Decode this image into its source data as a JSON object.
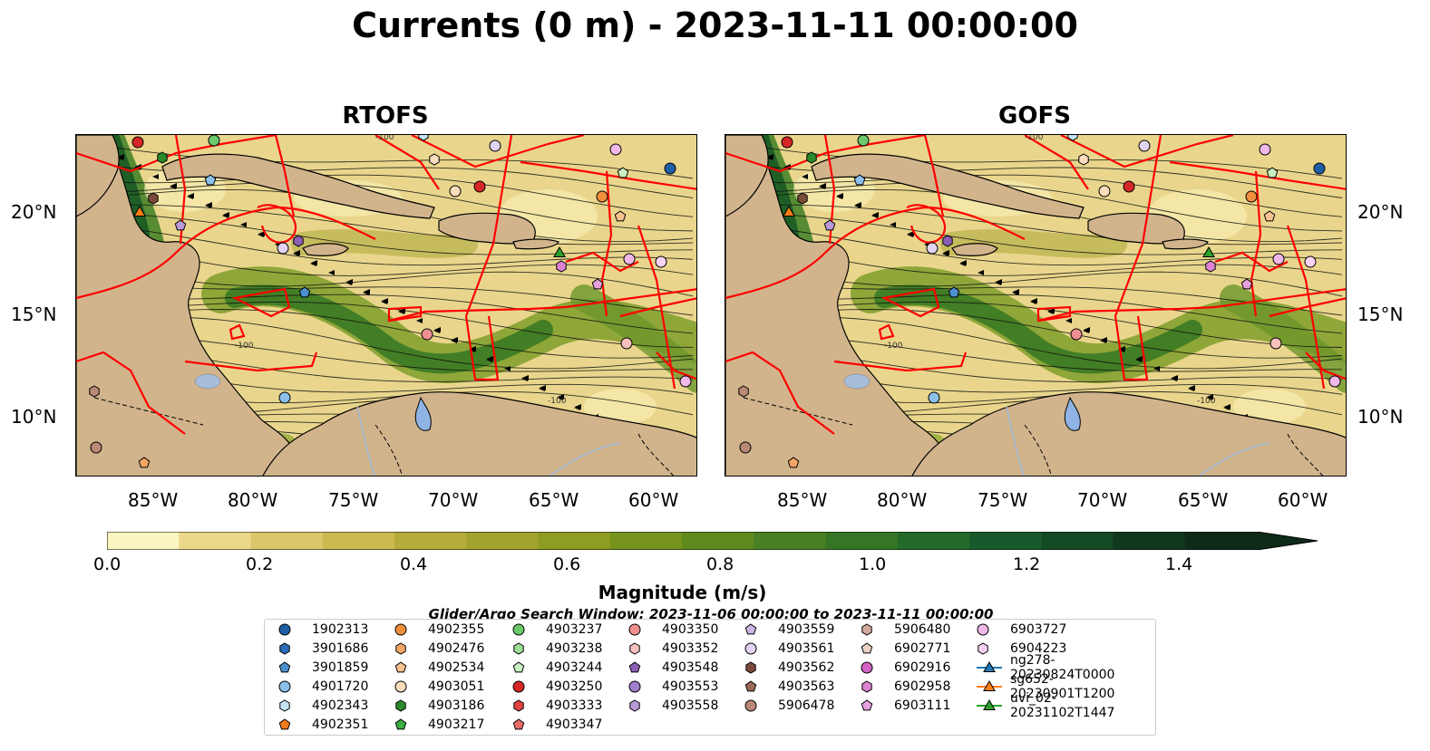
{
  "figure": {
    "title": "Currents (0 m) - 2023-11-11 00:00:00",
    "panels": [
      {
        "name": "RTOFS",
        "tile": "rtofs"
      },
      {
        "name": "GOFS",
        "tile": "gofs"
      }
    ],
    "lat_ticks": [
      "20°N",
      "15°N",
      "10°N"
    ],
    "lon_ticks": [
      "85°W",
      "80°W",
      "75°W",
      "70°W",
      "65°W",
      "60°W"
    ],
    "contour_labels": [
      "-100",
      "-100",
      "-100"
    ]
  },
  "colorbar": {
    "label": "Magnitude (m/s)",
    "ticks": [
      "0.0",
      "0.2",
      "0.4",
      "0.6",
      "0.8",
      "1.0",
      "1.2",
      "1.4"
    ],
    "colors": [
      "#fbf5c0",
      "#ecd88a",
      "#dcc66a",
      "#ccba50",
      "#b5ac3c",
      "#a2a22e",
      "#8f9c22",
      "#76941d",
      "#5f8a1e",
      "#4a8024",
      "#367525",
      "#246a2a",
      "#185a2b",
      "#134a24",
      "#10381d",
      "#0e2a18"
    ]
  },
  "search_window": "Glider/Argo Search Window: 2023-11-06 00:00:00 to 2023-11-11 00:00:00",
  "legend": {
    "items": [
      {
        "label": "1902313",
        "marker": "circle",
        "color": "#1f5fa8"
      },
      {
        "label": "3901686",
        "marker": "hexagon",
        "color": "#2b6cb8"
      },
      {
        "label": "3901859",
        "marker": "pentagon",
        "color": "#4d90d0"
      },
      {
        "label": "4901720",
        "marker": "circle",
        "color": "#8cc0ea"
      },
      {
        "label": "4902343",
        "marker": "hexagon",
        "color": "#c4e3f7"
      },
      {
        "label": "4902351",
        "marker": "pentagon",
        "color": "#ef7a1b"
      },
      {
        "label": "4902355",
        "marker": "circle",
        "color": "#f0903c"
      },
      {
        "label": "4902476",
        "marker": "hexagon",
        "color": "#f5a665"
      },
      {
        "label": "4902534",
        "marker": "pentagon",
        "color": "#f8c28f"
      },
      {
        "label": "4903051",
        "marker": "circle",
        "color": "#fbddbd"
      },
      {
        "label": "4903186",
        "marker": "hexagon",
        "color": "#2a8a2a"
      },
      {
        "label": "4903217",
        "marker": "pentagon",
        "color": "#3fae3f"
      },
      {
        "label": "4903237",
        "marker": "circle",
        "color": "#6cc96c"
      },
      {
        "label": "4903238",
        "marker": "hexagon",
        "color": "#9edd96"
      },
      {
        "label": "4903244",
        "marker": "pentagon",
        "color": "#c8efc0"
      },
      {
        "label": "4903250",
        "marker": "circle",
        "color": "#d62728"
      },
      {
        "label": "4903333",
        "marker": "hexagon",
        "color": "#e04344"
      },
      {
        "label": "4903347",
        "marker": "pentagon",
        "color": "#ea6a6a"
      },
      {
        "label": "4903350",
        "marker": "circle",
        "color": "#ef9090"
      },
      {
        "label": "4903352",
        "marker": "hexagon",
        "color": "#f7c0bc"
      },
      {
        "label": "4903548",
        "marker": "pentagon",
        "color": "#8a5fb5"
      },
      {
        "label": "4903553",
        "marker": "circle",
        "color": "#a07fcb"
      },
      {
        "label": "4903558",
        "marker": "hexagon",
        "color": "#b89ad8"
      },
      {
        "label": "4903559",
        "marker": "pentagon",
        "color": "#cdb7e5"
      },
      {
        "label": "4903561",
        "marker": "circle",
        "color": "#e1d3f1"
      },
      {
        "label": "4903562",
        "marker": "hexagon",
        "color": "#7a4a3a"
      },
      {
        "label": "4903563",
        "marker": "pentagon",
        "color": "#9a6a58"
      },
      {
        "label": "5906478",
        "marker": "circle",
        "color": "#b98876"
      },
      {
        "label": "5906480",
        "marker": "hexagon",
        "color": "#d3ab9c"
      },
      {
        "label": "6902771",
        "marker": "pentagon",
        "color": "#edd0c4"
      },
      {
        "label": "6902916",
        "marker": "circle",
        "color": "#d163c4"
      },
      {
        "label": "6902958",
        "marker": "hexagon",
        "color": "#dc82d1"
      },
      {
        "label": "6903111",
        "marker": "pentagon",
        "color": "#e6a0dc"
      },
      {
        "label": "6903727",
        "marker": "circle",
        "color": "#f0b8e8"
      },
      {
        "label": "6904223",
        "marker": "hexagon",
        "color": "#f8d2f2"
      },
      {
        "label": "ng278-20230824T0000",
        "marker": "triangle-line",
        "color": "#1f77b4"
      },
      {
        "label": "sg652-20230901T1200",
        "marker": "triangle-line",
        "color": "#ff7f0e"
      },
      {
        "label": "uvi_02-20231102T1447",
        "marker": "triangle-line",
        "color": "#2ca02c"
      }
    ]
  }
}
